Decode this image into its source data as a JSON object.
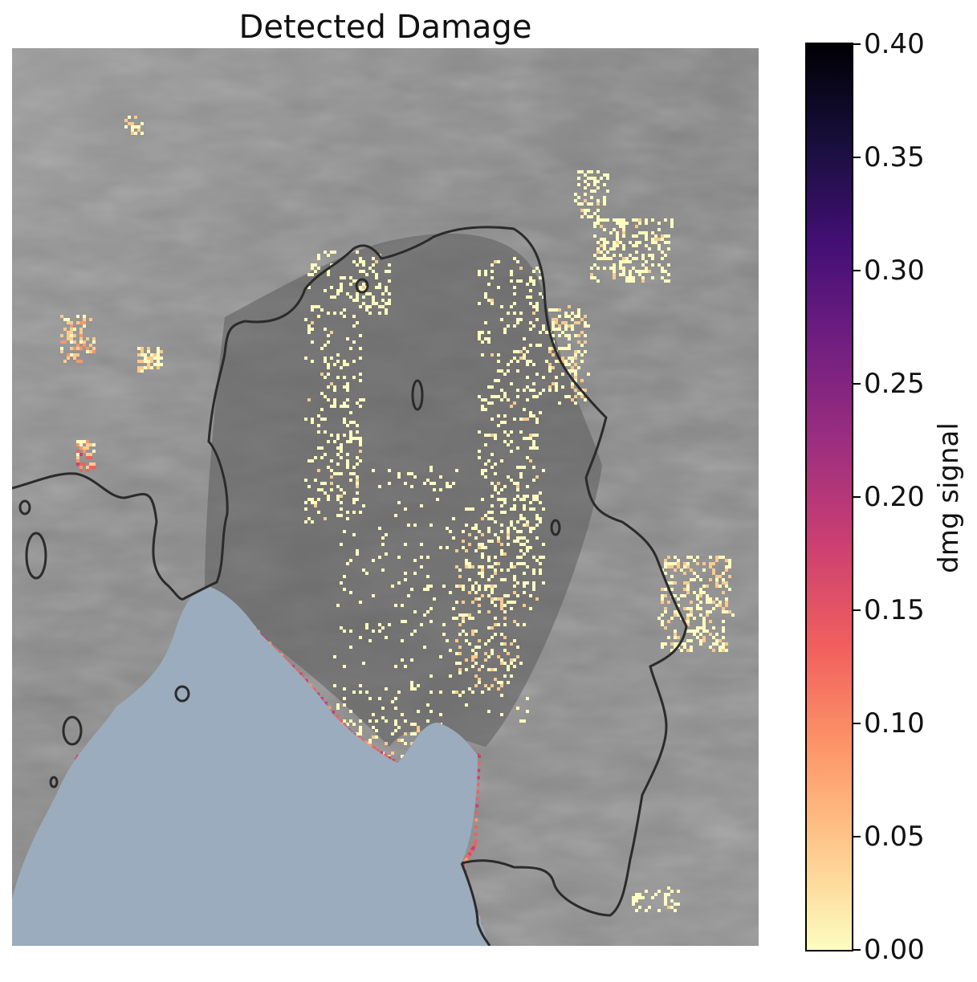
{
  "title": "Detected Damage",
  "colorbar": {
    "label": "dmg signal",
    "min": 0.0,
    "max": 0.4,
    "ticks": [
      "0.00",
      "0.05",
      "0.10",
      "0.15",
      "0.20",
      "0.25",
      "0.30",
      "0.35",
      "0.40"
    ],
    "colormap": [
      "#fcfdbf",
      "#feca8d",
      "#fd9668",
      "#f1605d",
      "#cd4071",
      "#9e2f7f",
      "#721f81",
      "#440f76",
      "#180f3d",
      "#000004"
    ]
  },
  "colors": {
    "ocean": "#9aacbd",
    "ice_background": "#8a8a8a",
    "grounding_line": "#2b2b2b"
  },
  "chart_data": {
    "type": "heatmap",
    "title": "Detected Damage",
    "value_range": [
      0.0,
      0.4
    ],
    "colorbar_label": "dmg signal",
    "content": "Damage signal overlaid on grayscale ice-shelf imagery with grounding-line contour and open ocean"
  }
}
